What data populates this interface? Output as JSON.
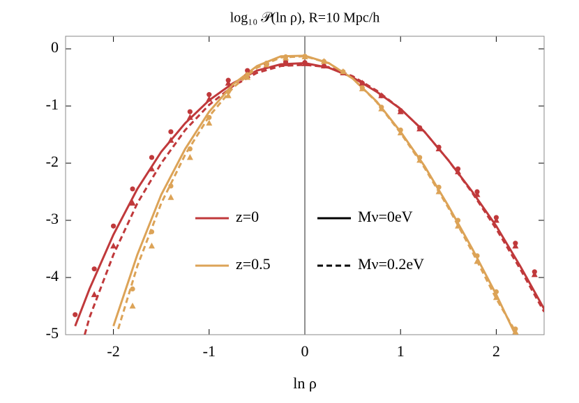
{
  "chart_data": {
    "type": "line",
    "title": "log₁₀ 𝒫(ln ρ), R=10 Mpc/h",
    "xlabel": "ln ρ",
    "xlim": [
      -2.5,
      2.5
    ],
    "ylim": [
      -5,
      0.22
    ],
    "xticks": [
      -2,
      -1,
      0,
      1,
      2
    ],
    "yticks": [
      0,
      -1,
      -2,
      -3,
      -4,
      -5
    ],
    "zero_line": true,
    "series": [
      {
        "color": "#c0393b",
        "dash": "solid",
        "x": [
          -2.4,
          -2.25,
          -2,
          -1.75,
          -1.5,
          -1.25,
          -1,
          -0.75,
          -0.5,
          -0.25,
          0,
          0.25,
          0.5,
          0.75,
          1,
          1.25,
          1.5,
          1.75,
          2,
          2.25,
          2.5
        ],
        "values": [
          -4.85,
          -4.2,
          -3.25,
          -2.45,
          -1.8,
          -1.3,
          -0.9,
          -0.6,
          -0.38,
          -0.27,
          -0.25,
          -0.33,
          -0.5,
          -0.75,
          -1.05,
          -1.45,
          -1.95,
          -2.5,
          -3.1,
          -3.8,
          -4.55
        ]
      },
      {
        "color": "#c0393b",
        "dash": "dashed",
        "x": [
          -2.3,
          -2.25,
          -2,
          -1.75,
          -1.5,
          -1.25,
          -1,
          -0.75,
          -0.5,
          -0.25,
          0,
          0.25,
          0.5,
          0.75,
          1,
          1.25,
          1.5,
          1.75,
          2,
          2.25,
          2.5
        ],
        "values": [
          -5,
          -4.7,
          -3.6,
          -2.7,
          -2.0,
          -1.42,
          -0.98,
          -0.65,
          -0.42,
          -0.3,
          -0.28,
          -0.32,
          -0.48,
          -0.73,
          -1.05,
          -1.45,
          -1.95,
          -2.52,
          -3.15,
          -3.85,
          -4.6
        ]
      },
      {
        "color": "#dca357",
        "dash": "solid",
        "x": [
          -2,
          -1.75,
          -1.5,
          -1.25,
          -1,
          -0.75,
          -0.5,
          -0.25,
          0,
          0.25,
          0.5,
          0.75,
          1,
          1.25,
          1.5,
          1.75,
          2,
          2.2
        ],
        "values": [
          -4.85,
          -3.6,
          -2.55,
          -1.75,
          -1.1,
          -0.62,
          -0.3,
          -0.13,
          -0.12,
          -0.25,
          -0.52,
          -0.92,
          -1.45,
          -2.05,
          -2.75,
          -3.5,
          -4.3,
          -5
        ]
      },
      {
        "color": "#dca357",
        "dash": "dashed",
        "x": [
          -1.95,
          -1.75,
          -1.5,
          -1.25,
          -1,
          -0.75,
          -0.5,
          -0.25,
          0,
          0.25,
          0.5,
          0.75,
          1,
          1.25,
          1.5,
          1.75,
          2,
          2.22
        ],
        "values": [
          -4.9,
          -3.8,
          -2.7,
          -1.85,
          -1.18,
          -0.68,
          -0.33,
          -0.15,
          -0.13,
          -0.25,
          -0.52,
          -0.93,
          -1.47,
          -2.08,
          -2.78,
          -3.55,
          -4.37,
          -5
        ]
      },
      {
        "color": "#c0393b",
        "marker": "circle",
        "x": [
          -2.4,
          -2.2,
          -2.0,
          -1.8,
          -1.6,
          -1.4,
          -1.2,
          -1.0,
          -0.8,
          -0.6,
          -0.4,
          -0.2,
          0,
          0.2,
          0.4,
          0.6,
          0.8,
          1.0,
          1.2,
          1.4,
          1.6,
          1.8,
          2.0,
          2.2,
          2.4
        ],
        "values": [
          -4.65,
          -3.85,
          -3.1,
          -2.45,
          -1.9,
          -1.45,
          -1.1,
          -0.8,
          -0.55,
          -0.38,
          -0.27,
          -0.23,
          -0.24,
          -0.3,
          -0.42,
          -0.6,
          -0.82,
          -1.08,
          -1.38,
          -1.72,
          -2.1,
          -2.5,
          -2.95,
          -3.4,
          -3.9
        ]
      },
      {
        "color": "#c0393b",
        "marker": "triangle",
        "x": [
          -2.2,
          -2.0,
          -1.8,
          -1.6,
          -1.4,
          -1.2,
          -1.0,
          -0.8,
          -0.6,
          -0.4,
          -0.2,
          0,
          0.2,
          0.4,
          0.6,
          0.8,
          1.0,
          1.2,
          1.4,
          1.6,
          1.8,
          2.0,
          2.2,
          2.4
        ],
        "values": [
          -4.3,
          -3.45,
          -2.7,
          -2.1,
          -1.6,
          -1.2,
          -0.88,
          -0.6,
          -0.42,
          -0.3,
          -0.26,
          -0.26,
          -0.3,
          -0.42,
          -0.6,
          -0.82,
          -1.1,
          -1.4,
          -1.75,
          -2.15,
          -2.55,
          -3.0,
          -3.45,
          -3.95
        ]
      },
      {
        "color": "#dca357",
        "marker": "circle",
        "x": [
          -1.8,
          -1.6,
          -1.4,
          -1.2,
          -1.0,
          -0.8,
          -0.6,
          -0.4,
          -0.2,
          0,
          0.2,
          0.4,
          0.6,
          0.8,
          1.0,
          1.2,
          1.4,
          1.6,
          1.8,
          2.0,
          2.2
        ],
        "values": [
          -4.2,
          -3.2,
          -2.4,
          -1.75,
          -1.2,
          -0.75,
          -0.45,
          -0.25,
          -0.14,
          -0.13,
          -0.22,
          -0.4,
          -0.68,
          -1.02,
          -1.42,
          -1.9,
          -2.42,
          -3.0,
          -3.62,
          -4.25,
          -4.9
        ]
      },
      {
        "color": "#dca357",
        "marker": "triangle",
        "x": [
          -1.8,
          -1.6,
          -1.4,
          -1.2,
          -1.0,
          -0.8,
          -0.6,
          -0.4,
          -0.2,
          0,
          0.2,
          0.4,
          0.6,
          0.8,
          1.0,
          1.2,
          1.4,
          1.6,
          1.8,
          2.0,
          2.2
        ],
        "values": [
          -4.5,
          -3.45,
          -2.6,
          -1.9,
          -1.3,
          -0.82,
          -0.5,
          -0.28,
          -0.16,
          -0.14,
          -0.22,
          -0.4,
          -0.7,
          -1.05,
          -1.47,
          -1.95,
          -2.5,
          -3.1,
          -3.72,
          -4.35,
          -4.95
        ]
      }
    ],
    "legend": [
      {
        "name": "z=0",
        "color": "#c0393b",
        "dash": "solid"
      },
      {
        "name": "z=0.5",
        "color": "#dca357",
        "dash": "solid"
      },
      {
        "name": "Mν=0eV",
        "color": "#000000",
        "dash": "solid"
      },
      {
        "name": "Mν=0.2eV",
        "color": "#000000",
        "dash": "dashed"
      }
    ]
  }
}
